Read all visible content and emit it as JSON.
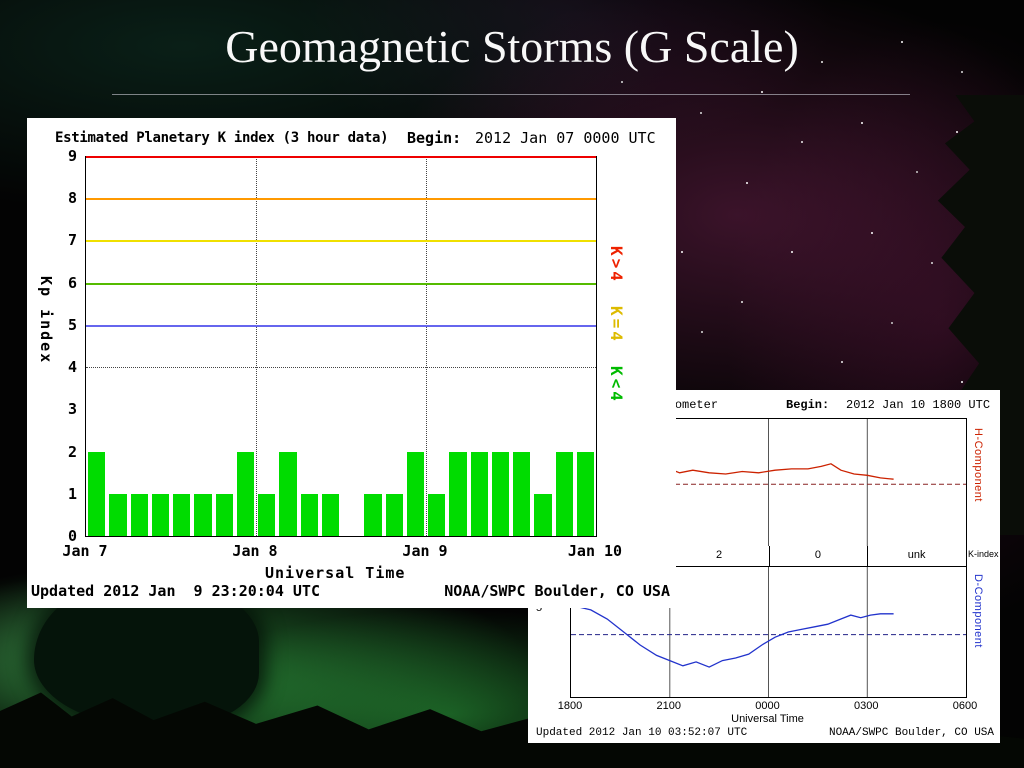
{
  "slide": {
    "title": "Geomagnetic Storms (G Scale)"
  },
  "chart_data": [
    {
      "type": "bar",
      "title": "Estimated Planetary K index (3 hour data)",
      "begin_label": "Begin:",
      "begin": "2012 Jan 07 0000 UTC",
      "xlabel": "Universal Time",
      "ylabel": "Kp index",
      "ylim": [
        0,
        9
      ],
      "y_ticks": [
        "9",
        "8",
        "7",
        "6",
        "5",
        "4",
        "3",
        "2",
        "1",
        "0"
      ],
      "x_ticks": [
        "Jan 7",
        "Jan 8",
        "Jan 9",
        "Jan 10"
      ],
      "bar_interval_hours": 3,
      "bar_values": [
        2,
        1,
        1,
        1,
        1,
        1,
        1,
        2,
        1,
        2,
        1,
        1,
        0,
        1,
        1,
        2,
        1,
        2,
        2,
        2,
        2,
        1,
        2,
        2
      ],
      "bar_color": "#00dc00",
      "threshold_lines": [
        {
          "y": 9,
          "color": "#ee0000",
          "style": "solid"
        },
        {
          "y": 8,
          "color": "#ff9900",
          "style": "solid"
        },
        {
          "y": 7,
          "color": "#f0e000",
          "style": "solid"
        },
        {
          "y": 6,
          "color": "#55bb00",
          "style": "solid"
        },
        {
          "y": 5,
          "color": "#6666ee",
          "style": "solid"
        },
        {
          "y": 4,
          "color": "#444444",
          "style": "dotted"
        }
      ],
      "legend": [
        {
          "label": "K>4",
          "color": "#ee2200"
        },
        {
          "label": "K=4",
          "color": "#ddbb00"
        },
        {
          "label": "K<4",
          "color": "#00bb00"
        }
      ],
      "updated": "Updated 2012 Jan  9 23:20:04 UTC",
      "source": "NOAA/SWPC Boulder, CO USA"
    },
    {
      "type": "line",
      "title": "Boulder magnetometer",
      "begin_label": "Begin:",
      "begin": "2012 Jan 10 1800 UTC",
      "xlabel": "Universal Time",
      "x_ticks": [
        "1800",
        "2100",
        "0000",
        "0300",
        "0600"
      ],
      "x_range_hours": [
        18,
        30
      ],
      "grid_hours": [
        21,
        24,
        27
      ],
      "y_tick_left": "5",
      "y_scale": "normalized 0-1 from panel top (amplitude axis unlabeled in image)",
      "k_index_strip": {
        "label": "K-index",
        "values": [
          "2",
          "0",
          "unk"
        ],
        "centers_frac": [
          0.375,
          0.625,
          0.875
        ]
      },
      "series": [
        {
          "name": "H-Component",
          "axis_label": "H-Component",
          "color": "#cc2200",
          "baseline_color": "#882222",
          "baseline_frac": 0.51,
          "points": [
            [
              18.1,
              0.92
            ],
            [
              18.5,
              0.8
            ],
            [
              19,
              0.62
            ],
            [
              19.5,
              0.5
            ],
            [
              20,
              0.44
            ],
            [
              20.5,
              0.4
            ],
            [
              21,
              0.39
            ],
            [
              21.3,
              0.42
            ],
            [
              21.7,
              0.4
            ],
            [
              22.2,
              0.42
            ],
            [
              22.7,
              0.43
            ],
            [
              23.2,
              0.41
            ],
            [
              23.7,
              0.42
            ],
            [
              24.2,
              0.4
            ],
            [
              24.7,
              0.39
            ],
            [
              25.2,
              0.39
            ],
            [
              25.6,
              0.37
            ],
            [
              25.9,
              0.35
            ],
            [
              26.2,
              0.4
            ],
            [
              26.6,
              0.43
            ],
            [
              27,
              0.44
            ],
            [
              27.4,
              0.46
            ],
            [
              27.8,
              0.47
            ]
          ]
        },
        {
          "name": "D-Component",
          "axis_label": "D-Component",
          "color": "#2233cc",
          "baseline_color": "#222288",
          "baseline_frac": 0.52,
          "points": [
            [
              18.1,
              0.3
            ],
            [
              18.6,
              0.33
            ],
            [
              19.1,
              0.4
            ],
            [
              19.6,
              0.5
            ],
            [
              20.1,
              0.6
            ],
            [
              20.6,
              0.68
            ],
            [
              21,
              0.72
            ],
            [
              21.4,
              0.76
            ],
            [
              21.8,
              0.73
            ],
            [
              22.2,
              0.77
            ],
            [
              22.6,
              0.72
            ],
            [
              23,
              0.7
            ],
            [
              23.4,
              0.67
            ],
            [
              23.8,
              0.6
            ],
            [
              24.2,
              0.54
            ],
            [
              24.6,
              0.5
            ],
            [
              25,
              0.48
            ],
            [
              25.4,
              0.46
            ],
            [
              25.8,
              0.44
            ],
            [
              26.2,
              0.4
            ],
            [
              26.5,
              0.37
            ],
            [
              26.8,
              0.39
            ],
            [
              27.1,
              0.37
            ],
            [
              27.4,
              0.36
            ],
            [
              27.8,
              0.36
            ]
          ]
        }
      ],
      "updated": "Updated 2012 Jan 10 03:52:07 UTC",
      "source": "NOAA/SWPC Boulder, CO USA"
    }
  ]
}
